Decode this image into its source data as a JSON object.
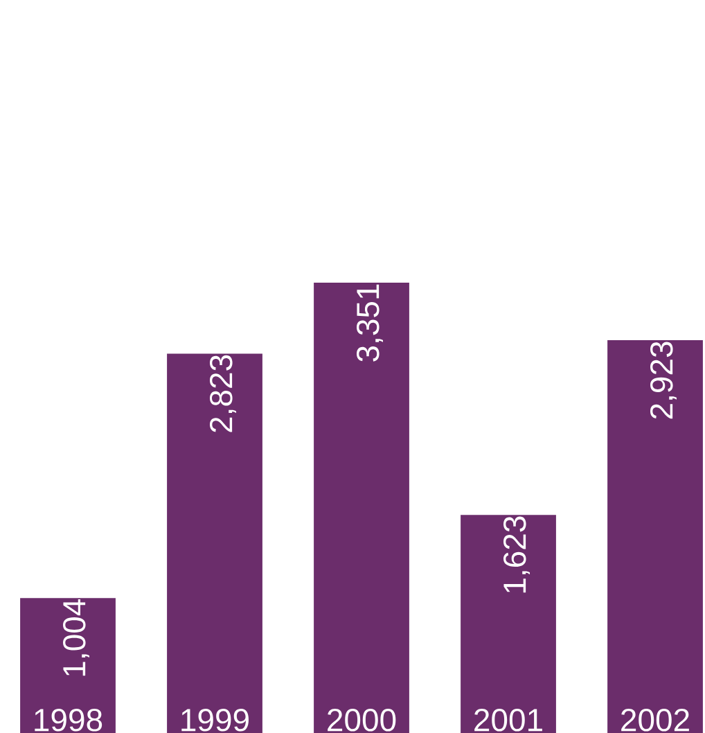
{
  "chart_data": {
    "type": "bar",
    "categories": [
      "1998",
      "1999",
      "2000",
      "2001",
      "2002"
    ],
    "values": [
      1004,
      2823,
      3351,
      1623,
      2923
    ],
    "value_labels": [
      "1,004",
      "2,823",
      "3,351",
      "1,623",
      "2,923"
    ],
    "color": "#6b2d6b"
  }
}
